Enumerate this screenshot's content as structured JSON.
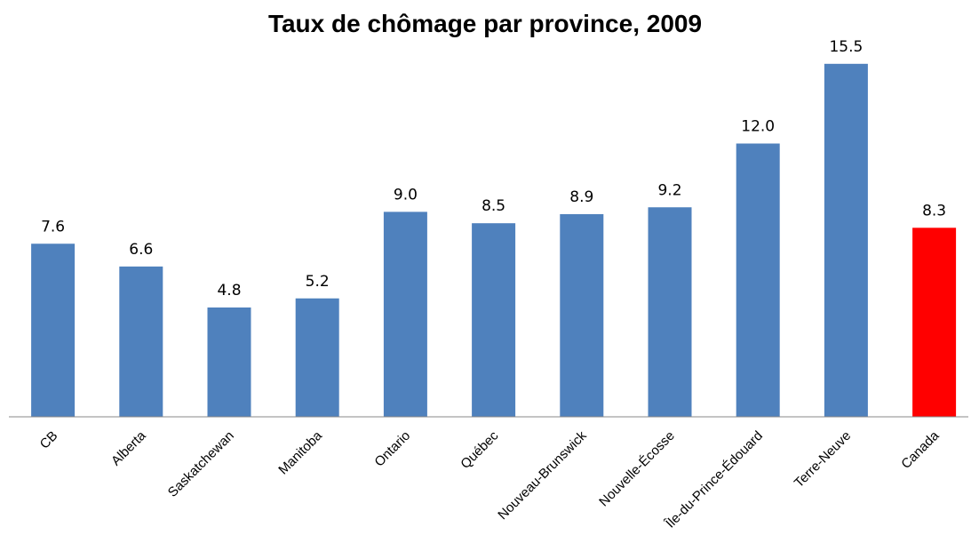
{
  "chart_data": {
    "type": "bar",
    "title": "Taux de chômage par province, 2009",
    "categories": [
      "CB",
      "Alberta",
      "Saskatchewan",
      "Manitoba",
      "Ontario",
      "Québec",
      "Nouveau-Brunswick",
      "Nouvelle-Écosse",
      "Île-du-Prince-Édouard",
      "Terre-Neuve",
      "Canada"
    ],
    "values": [
      7.6,
      6.6,
      4.8,
      5.2,
      9.0,
      8.5,
      8.9,
      9.2,
      12.0,
      15.5,
      8.3
    ],
    "value_labels": [
      "7.6",
      "6.6",
      "4.8",
      "5.2",
      "9.0",
      "8.5",
      "8.9",
      "9.2",
      "12.0",
      "15.5",
      "8.3"
    ],
    "colors": [
      "#4f81bd",
      "#4f81bd",
      "#4f81bd",
      "#4f81bd",
      "#4f81bd",
      "#4f81bd",
      "#4f81bd",
      "#4f81bd",
      "#4f81bd",
      "#4f81bd",
      "#ff0000"
    ],
    "ylim": [
      0,
      16
    ]
  }
}
